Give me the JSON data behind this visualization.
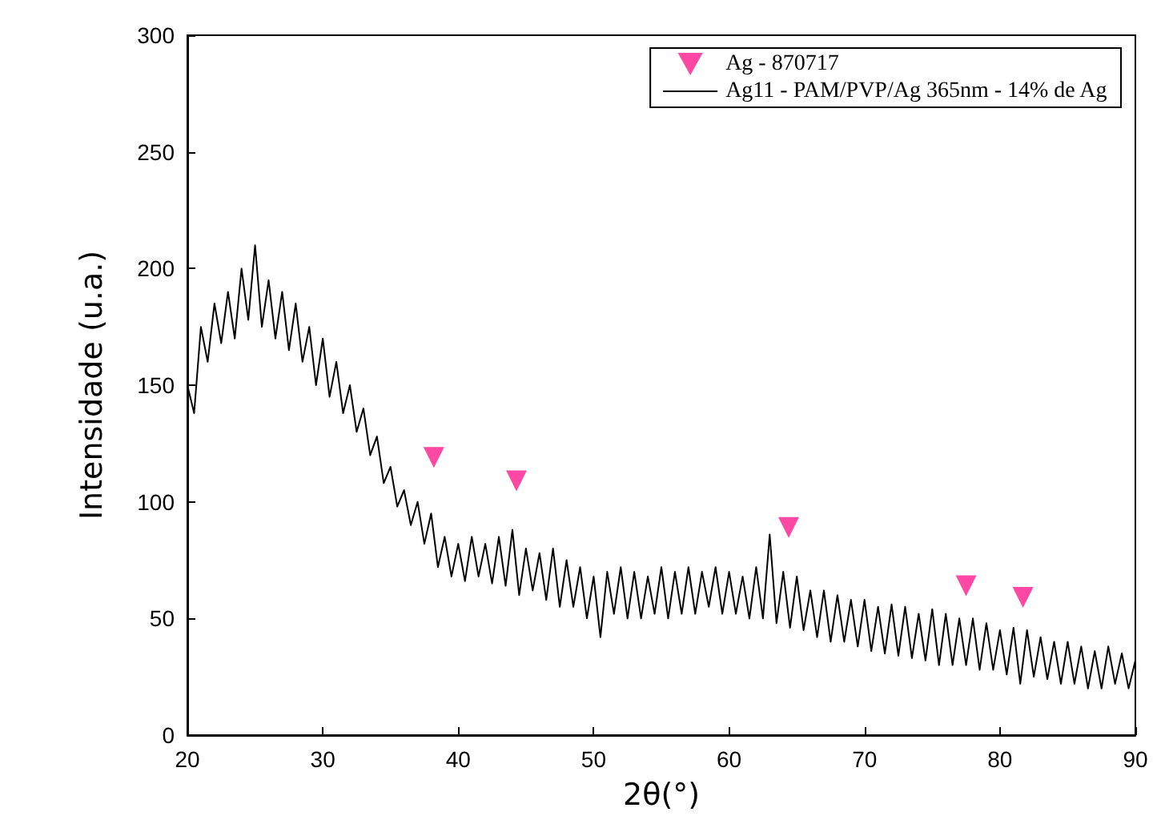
{
  "chart_data": {
    "type": "line",
    "xlabel": "2θ(°)",
    "ylabel": "Intensidade (u.a.)",
    "xlim": [
      20,
      90
    ],
    "xticks": [
      20,
      30,
      40,
      50,
      60,
      70,
      80,
      90
    ],
    "ylim": [
      0,
      300
    ],
    "yticks": [
      0,
      50,
      100,
      150,
      200,
      250,
      300
    ],
    "grid": false,
    "legend": "top right",
    "series": [
      {
        "name": "Ag - 870717",
        "type": "scatter",
        "marker": "triangle",
        "color": "#ff1a8c",
        "x": [
          38.2,
          44.3,
          64.4,
          77.5,
          81.7
        ],
        "values": [
          119,
          109,
          89,
          64,
          59
        ]
      },
      {
        "name": "Ag11 - PAM/PVP/Ag 365nm - 14% de Ag",
        "marker": "none",
        "color": "#000000",
        "x": [
          20,
          20.5,
          21,
          21.5,
          22,
          22.5,
          23,
          23.5,
          24,
          24.5,
          25,
          25.5,
          26,
          26.5,
          27,
          27.5,
          28,
          28.5,
          29,
          29.5,
          30,
          30.5,
          31,
          31.5,
          32,
          32.5,
          33,
          33.5,
          34,
          34.5,
          35,
          35.5,
          36,
          36.5,
          37,
          37.5,
          38,
          38.5,
          39,
          39.5,
          40,
          40.5,
          41,
          41.5,
          42,
          42.5,
          43,
          43.5,
          44,
          44.5,
          45,
          45.5,
          46,
          46.5,
          47,
          47.5,
          48,
          48.5,
          49,
          49.5,
          50,
          50.5,
          51,
          51.5,
          52,
          52.5,
          53,
          53.5,
          54,
          54.5,
          55,
          55.5,
          56,
          56.5,
          57,
          57.5,
          58,
          58.5,
          59,
          59.5,
          60,
          60.5,
          61,
          61.5,
          62,
          62.5,
          63,
          63.5,
          64,
          64.5,
          65,
          65.5,
          66,
          66.5,
          67,
          67.5,
          68,
          68.5,
          69,
          69.5,
          70,
          70.5,
          71,
          71.5,
          72,
          72.5,
          73,
          73.5,
          74,
          74.5,
          75,
          75.5,
          76,
          76.5,
          77,
          77.5,
          78,
          78.5,
          79,
          79.5,
          80,
          80.5,
          81,
          81.5,
          82,
          82.5,
          83,
          83.5,
          84,
          84.5,
          85,
          85.5,
          86,
          86.5,
          87,
          87.5,
          88,
          88.5,
          89,
          89.5,
          90
        ],
        "values": [
          150,
          138,
          175,
          160,
          185,
          168,
          190,
          170,
          200,
          178,
          210,
          175,
          195,
          170,
          190,
          165,
          185,
          160,
          175,
          150,
          170,
          145,
          160,
          138,
          150,
          130,
          140,
          120,
          128,
          108,
          115,
          98,
          105,
          90,
          100,
          82,
          95,
          72,
          85,
          68,
          82,
          66,
          85,
          68,
          82,
          65,
          85,
          64,
          88,
          60,
          80,
          62,
          78,
          58,
          80,
          55,
          75,
          55,
          72,
          50,
          68,
          42,
          70,
          52,
          72,
          50,
          70,
          50,
          68,
          52,
          72,
          50,
          70,
          52,
          72,
          52,
          70,
          55,
          72,
          52,
          70,
          52,
          68,
          50,
          72,
          50,
          86,
          48,
          70,
          46,
          68,
          45,
          62,
          42,
          62,
          40,
          60,
          40,
          58,
          38,
          58,
          36,
          55,
          35,
          56,
          34,
          55,
          33,
          52,
          32,
          54,
          30,
          52,
          30,
          50,
          30,
          50,
          28,
          48,
          28,
          45,
          26,
          46,
          22,
          45,
          25,
          42,
          24,
          40,
          22,
          40,
          22,
          38,
          20,
          36,
          20,
          38,
          22,
          35,
          20,
          32
        ]
      }
    ]
  }
}
